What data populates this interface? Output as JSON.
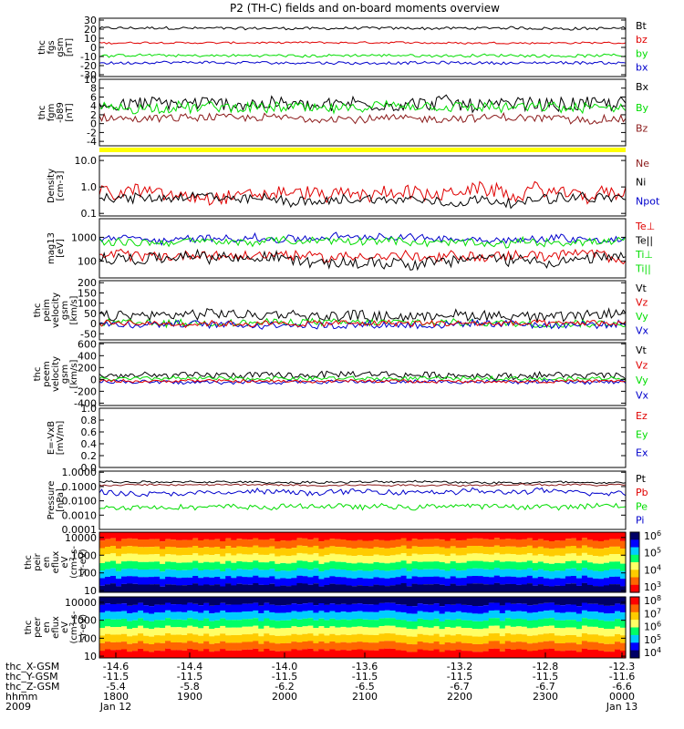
{
  "title": "P2 (TH-C) fields and on-board moments overview",
  "colors": {
    "black": "#000000",
    "red": "#e00000",
    "green": "#00dd00",
    "blue": "#0000cc",
    "darkred": "#8b1a1a",
    "yellow": "#ffff00"
  },
  "chart_data": [
    {
      "type": "line",
      "ylabel": [
        "thc",
        "fgs",
        "gsm",
        "[nT]"
      ],
      "ylim": [
        -32,
        32
      ],
      "ticks": [
        "30",
        "20",
        "10",
        "0",
        "-10",
        "-20",
        "-30"
      ],
      "tick_values": [
        30,
        20,
        10,
        0,
        -10,
        -20,
        -30
      ],
      "legend": [
        "Bt",
        "bz",
        "by",
        "bx"
      ],
      "legend_colors": [
        "black",
        "red",
        "green",
        "blue"
      ],
      "series": [
        {
          "name": "Bt",
          "color": "black",
          "level": 21,
          "noise": 1.5
        },
        {
          "name": "bz",
          "color": "red",
          "level": 5,
          "noise": 1
        },
        {
          "name": "by",
          "color": "green",
          "level": -9,
          "noise": 1.5
        },
        {
          "name": "bx",
          "color": "blue",
          "level": -17,
          "noise": 1.5
        }
      ]
    },
    {
      "type": "line",
      "ylabel": [
        "thc",
        "fgm",
        "-b89",
        "[nT]"
      ],
      "ylim": [
        -5,
        10
      ],
      "ticks": [
        "10",
        "8",
        "6",
        "4",
        "2",
        "0",
        "-2",
        "-4"
      ],
      "tick_values": [
        10,
        8,
        6,
        4,
        2,
        0,
        -2,
        -4
      ],
      "legend": [
        "Bx",
        "By",
        "Bz"
      ],
      "legend_colors": [
        "black",
        "green",
        "darkred"
      ],
      "series": [
        {
          "name": "Bx",
          "color": "black",
          "level": 4.5,
          "noise": 1.6
        },
        {
          "name": "By",
          "color": "green",
          "level": 3.5,
          "noise": 1.2
        },
        {
          "name": "Bz",
          "color": "darkred",
          "level": 1.2,
          "noise": 0.9
        }
      ]
    },
    {
      "type": "line",
      "ylabel": [
        "Density",
        "[cm-3]"
      ],
      "log": true,
      "ylim": [
        0.08,
        15
      ],
      "ticks": [
        "10.0",
        "1.0",
        "0.1"
      ],
      "tick_values": [
        10,
        1,
        0.1
      ],
      "legend": [
        "Ne",
        "Ni",
        "Npot"
      ],
      "legend_colors": [
        "darkred",
        "black",
        "blue"
      ],
      "series": [
        {
          "name": "Ne",
          "color": "red",
          "level": 0.6,
          "noise": 0.5
        },
        {
          "name": "Ni",
          "color": "black",
          "level": 0.35,
          "noise": 0.35
        }
      ]
    },
    {
      "type": "line",
      "ylabel": [
        "mag13",
        "[eV]"
      ],
      "log": true,
      "ylim": [
        20,
        6000
      ],
      "ticks": [
        "1000",
        "100"
      ],
      "tick_values": [
        1000,
        100
      ],
      "legend": [
        "Te⊥",
        "Te||",
        "Ti⊥",
        "Ti||"
      ],
      "legend_colors": [
        "red",
        "black",
        "green",
        "green"
      ],
      "series": [
        {
          "name": "Ti",
          "color": "blue",
          "level": 900,
          "noise": 0.3
        },
        {
          "name": "Ti||",
          "color": "green",
          "level": 650,
          "noise": 0.3
        },
        {
          "name": "Te",
          "color": "red",
          "level": 170,
          "noise": 0.4
        },
        {
          "name": "Te||",
          "color": "black",
          "level": 120,
          "noise": 0.45
        }
      ]
    },
    {
      "type": "line",
      "ylabel": [
        "thc",
        "peim",
        "velocity",
        "gsm",
        "[km/s]"
      ],
      "ylim": [
        -80,
        210
      ],
      "ticks": [
        "200",
        "150",
        "100",
        "50",
        "0",
        "-50"
      ],
      "tick_values": [
        200,
        150,
        100,
        50,
        0,
        -50
      ],
      "legend": [
        "Vt",
        "Vz",
        "Vy",
        "Vx"
      ],
      "legend_colors": [
        "black",
        "red",
        "green",
        "blue"
      ],
      "series": [
        {
          "name": "Vt",
          "color": "black",
          "level": 40,
          "noise": 25
        },
        {
          "name": "Vy",
          "color": "green",
          "level": 5,
          "noise": 18
        },
        {
          "name": "Vx",
          "color": "blue",
          "level": -5,
          "noise": 18
        },
        {
          "name": "Vz",
          "color": "red",
          "level": 0,
          "noise": 15
        }
      ]
    },
    {
      "type": "line",
      "ylabel": [
        "thc",
        "peem",
        "velocity",
        "gsm",
        "[km/s]"
      ],
      "ylim": [
        -440,
        620
      ],
      "ticks": [
        "600",
        "400",
        "200",
        "0",
        "-200",
        "-400"
      ],
      "tick_values": [
        600,
        400,
        200,
        0,
        -200,
        -400
      ],
      "legend": [
        "Vt",
        "Vz",
        "Vy",
        "Vx"
      ],
      "legend_colors": [
        "black",
        "red",
        "green",
        "blue"
      ],
      "series": [
        {
          "name": "Vt",
          "color": "black",
          "level": 70,
          "noise": 55
        },
        {
          "name": "Vy",
          "color": "green",
          "level": 15,
          "noise": 35
        },
        {
          "name": "Vx",
          "color": "blue",
          "level": -40,
          "noise": 30
        },
        {
          "name": "Vz",
          "color": "red",
          "level": -30,
          "noise": 25
        }
      ]
    },
    {
      "type": "line",
      "ylabel": [
        "E=-VxB",
        "[mV/m]"
      ],
      "ylim": [
        0,
        1
      ],
      "ticks": [
        "1.0",
        "0.8",
        "0.6",
        "0.4",
        "0.2",
        "0.0"
      ],
      "tick_values": [
        1,
        0.8,
        0.6,
        0.4,
        0.2,
        0
      ],
      "legend": [
        "Ez",
        "Ey",
        "Ex"
      ],
      "legend_colors": [
        "red",
        "green",
        "blue"
      ],
      "series": []
    },
    {
      "type": "line",
      "ylabel": [
        "Pressure",
        "[nPa]"
      ],
      "log": true,
      "ylim": [
        0.0001,
        1.2
      ],
      "ticks": [
        "1.0000",
        "0.1000",
        "0.0100",
        "0.0010",
        "0.0001"
      ],
      "tick_values": [
        1,
        0.1,
        0.01,
        0.001,
        0.0001
      ],
      "legend": [
        "Pt",
        "Pb",
        "Pe",
        "Pi"
      ],
      "legend_colors": [
        "black",
        "red",
        "green",
        "blue"
      ],
      "series": [
        {
          "name": "Pt",
          "color": "black",
          "level": 0.2,
          "noise": 0.15
        },
        {
          "name": "Pb",
          "color": "darkred",
          "level": 0.13,
          "noise": 0.12
        },
        {
          "name": "Pi",
          "color": "blue",
          "level": 0.04,
          "noise": 0.35
        },
        {
          "name": "Pe",
          "color": "green",
          "level": 0.004,
          "noise": 0.35
        }
      ]
    },
    {
      "type": "heatmap",
      "ylabel": [
        "thc",
        "peir",
        "en",
        "eflux",
        "eV",
        "(cm^2-s-",
        "sr-eV)"
      ],
      "log": true,
      "ylim": [
        8,
        20000
      ],
      "ticks": [
        "10000",
        "1000",
        "100",
        "10"
      ],
      "tick_values": [
        10000,
        1000,
        100,
        10
      ],
      "colorbar": [
        "10^6",
        "10^5",
        "10^4",
        "10^3"
      ]
    },
    {
      "type": "heatmap",
      "ylabel": [
        "thc",
        "peer",
        "en",
        "eflux",
        "eV",
        "(cm^2-s-",
        "sr-eV)"
      ],
      "log": true,
      "ylim": [
        8,
        20000
      ],
      "ticks": [
        "10000",
        "1000",
        "100",
        "10"
      ],
      "tick_values": [
        10000,
        1000,
        100,
        10
      ],
      "colorbar": [
        "10^8",
        "10^7",
        "10^6",
        "10^5",
        "10^4"
      ]
    }
  ],
  "xaxis": {
    "rows": [
      {
        "label": "thc_X-GSM",
        "values": [
          "-14.6",
          "-14.4",
          "-14.0",
          "-13.6",
          "-13.2",
          "-12.8",
          "-12.3"
        ]
      },
      {
        "label": "thc_Y-GSM",
        "values": [
          "-11.5",
          "-11.5",
          "-11.5",
          "-11.5",
          "-11.5",
          "-11.5",
          "-11.6"
        ]
      },
      {
        "label": "thc_Z-GSM",
        "values": [
          "-5.4",
          "-5.8",
          "-6.2",
          "-6.5",
          "-6.7",
          "-6.7",
          "-6.6"
        ]
      },
      {
        "label": "hhmm",
        "values": [
          "1800",
          "1900",
          "2000",
          "2100",
          "2200",
          "2300",
          "0000"
        ]
      },
      {
        "label": "2009",
        "values": [
          "Jan 12",
          "",
          "",
          "",
          "",
          "",
          "Jan 13"
        ]
      }
    ]
  }
}
